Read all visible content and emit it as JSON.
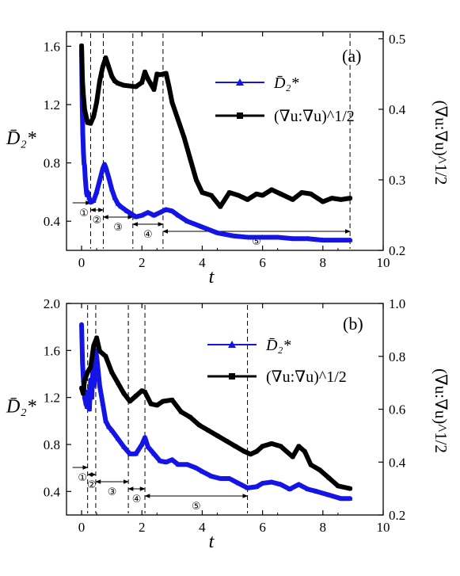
{
  "colors": {
    "blue": "#1414e6",
    "black": "#000000"
  },
  "chart_data": [
    {
      "type": "line",
      "panel_label": "(a)",
      "xlabel": "t",
      "ylabel": "D̄₂*",
      "ylabel_right": "(∇u:∇u)^1/2",
      "xlim": [
        -0.5,
        10
      ],
      "ylim": [
        0.2,
        1.7
      ],
      "ylim_right": [
        0.2,
        0.51
      ],
      "x_ticks": [
        "0",
        "2",
        "4",
        "6",
        "8",
        "10"
      ],
      "y_ticks": [
        "0.4",
        "0.8",
        "1.2",
        "1.6"
      ],
      "y_right_ticks": [
        "0.2",
        "0.3",
        "0.4",
        "0.5"
      ],
      "legend": [
        {
          "label": "D̄₂*",
          "color": "#1414e6",
          "marker": "triangle"
        },
        {
          "label": "(∇u:∇u)^1/2",
          "color": "#000000",
          "marker": "square"
        }
      ],
      "stage_lines": [
        0.3,
        0.72,
        1.7,
        2.7,
        8.9
      ],
      "stages": [
        {
          "label": "①",
          "from": -0.3,
          "to": 0.3
        },
        {
          "label": "②",
          "from": 0.3,
          "to": 0.72
        },
        {
          "label": "③",
          "from": 0.72,
          "to": 1.7
        },
        {
          "label": "④",
          "from": 1.7,
          "to": 2.7
        },
        {
          "label": "⑤",
          "from": 2.7,
          "to": 8.9
        }
      ],
      "series": [
        {
          "name": "D̄₂*",
          "axis": "left",
          "x": [
            0,
            0.02,
            0.04,
            0.06,
            0.08,
            0.1,
            0.12,
            0.14,
            0.16,
            0.18,
            0.2,
            0.25,
            0.3,
            0.4,
            0.5,
            0.6,
            0.7,
            0.76,
            0.8,
            0.9,
            1.0,
            1.1,
            1.2,
            1.3,
            1.5,
            1.8,
            2.0,
            2.2,
            2.4,
            2.6,
            2.8,
            3.0,
            3.2,
            3.5,
            4.0,
            4.5,
            5.0,
            5.5,
            6.0,
            6.5,
            7.0,
            7.5,
            8.0,
            8.5,
            8.9
          ],
          "y": [
            1.57,
            1.2,
            1.0,
            0.88,
            0.8,
            0.78,
            0.7,
            0.65,
            0.6,
            0.58,
            0.6,
            0.56,
            0.53,
            0.54,
            0.6,
            0.68,
            0.76,
            0.79,
            0.77,
            0.7,
            0.62,
            0.56,
            0.52,
            0.5,
            0.47,
            0.43,
            0.44,
            0.46,
            0.44,
            0.46,
            0.48,
            0.47,
            0.44,
            0.4,
            0.36,
            0.32,
            0.3,
            0.29,
            0.29,
            0.29,
            0.28,
            0.28,
            0.27,
            0.27,
            0.27
          ]
        },
        {
          "name": "(∇u:∇u)^1/2",
          "axis": "right",
          "x": [
            0,
            0.03,
            0.06,
            0.1,
            0.15,
            0.2,
            0.3,
            0.4,
            0.5,
            0.6,
            0.7,
            0.8,
            0.9,
            1.0,
            1.1,
            1.2,
            1.4,
            1.6,
            1.8,
            2.0,
            2.1,
            2.2,
            2.4,
            2.5,
            2.6,
            2.8,
            2.9,
            3.0,
            3.2,
            3.4,
            3.6,
            3.8,
            4.0,
            4.3,
            4.6,
            4.9,
            5.2,
            5.5,
            5.8,
            6.0,
            6.3,
            6.6,
            7.0,
            7.3,
            7.6,
            8.0,
            8.3,
            8.6,
            8.9
          ],
          "y": [
            0.49,
            0.44,
            0.42,
            0.4,
            0.39,
            0.381,
            0.38,
            0.39,
            0.41,
            0.44,
            0.46,
            0.473,
            0.46,
            0.447,
            0.44,
            0.437,
            0.434,
            0.433,
            0.432,
            0.438,
            0.453,
            0.443,
            0.428,
            0.45,
            0.449,
            0.451,
            0.432,
            0.41,
            0.385,
            0.36,
            0.33,
            0.3,
            0.282,
            0.278,
            0.262,
            0.282,
            0.278,
            0.272,
            0.28,
            0.278,
            0.286,
            0.28,
            0.272,
            0.282,
            0.28,
            0.269,
            0.274,
            0.272,
            0.274
          ]
        }
      ]
    },
    {
      "type": "line",
      "panel_label": "(b)",
      "xlabel": "t",
      "ylabel": "D̄₂*",
      "ylabel_right": "(∇u:∇u)^1/2",
      "xlim": [
        -0.5,
        10
      ],
      "ylim": [
        0.2,
        2.0
      ],
      "ylim_right": [
        0.2,
        1.0
      ],
      "x_ticks": [
        "0",
        "2",
        "4",
        "6",
        "8",
        "10"
      ],
      "y_ticks": [
        "0.4",
        "0.8",
        "1.2",
        "1.6",
        "2.0"
      ],
      "y_right_ticks": [
        "0.2",
        "0.4",
        "0.6",
        "0.8",
        "1.0"
      ],
      "legend": [
        {
          "label": "D̄₂*",
          "color": "#1414e6",
          "marker": "triangle"
        },
        {
          "label": "(∇u:∇u)^1/2",
          "color": "#000000",
          "marker": "square"
        }
      ],
      "stage_lines": [
        0.2,
        0.47,
        1.55,
        2.1,
        5.5
      ],
      "stages": [
        {
          "label": "①",
          "from": -0.3,
          "to": 0.2
        },
        {
          "label": "②",
          "from": 0.2,
          "to": 0.47
        },
        {
          "label": "③",
          "from": 0.47,
          "to": 1.55
        },
        {
          "label": "④",
          "from": 1.55,
          "to": 2.1
        },
        {
          "label": "⑤",
          "from": 2.1,
          "to": 5.5
        }
      ],
      "series": [
        {
          "name": "D̄₂*",
          "axis": "left",
          "x": [
            0,
            0.03,
            0.06,
            0.1,
            0.14,
            0.18,
            0.22,
            0.26,
            0.3,
            0.34,
            0.38,
            0.42,
            0.46,
            0.5,
            0.6,
            0.7,
            0.8,
            0.9,
            1.0,
            1.2,
            1.4,
            1.6,
            1.8,
            2.0,
            2.1,
            2.2,
            2.4,
            2.6,
            2.8,
            3.0,
            3.2,
            3.5,
            3.8,
            4.0,
            4.3,
            4.6,
            4.9,
            5.2,
            5.5,
            5.8,
            6.0,
            6.3,
            6.6,
            6.9,
            7.2,
            7.5,
            7.8,
            8.2,
            8.6,
            8.9
          ],
          "y": [
            1.82,
            1.5,
            1.35,
            1.2,
            1.15,
            1.12,
            1.25,
            1.1,
            1.35,
            1.2,
            1.5,
            1.3,
            1.6,
            1.55,
            1.3,
            1.15,
            1.0,
            0.95,
            0.92,
            0.85,
            0.78,
            0.72,
            0.72,
            0.8,
            0.86,
            0.78,
            0.72,
            0.66,
            0.65,
            0.67,
            0.63,
            0.63,
            0.6,
            0.57,
            0.53,
            0.51,
            0.51,
            0.47,
            0.43,
            0.44,
            0.47,
            0.48,
            0.46,
            0.42,
            0.46,
            0.42,
            0.4,
            0.37,
            0.34,
            0.34
          ]
        },
        {
          "name": "(∇u:∇u)^1/2",
          "axis": "right",
          "x": [
            0,
            0.05,
            0.1,
            0.2,
            0.3,
            0.4,
            0.5,
            0.6,
            0.8,
            1.0,
            1.2,
            1.4,
            1.6,
            1.8,
            2.0,
            2.1,
            2.3,
            2.5,
            2.7,
            3.0,
            3.3,
            3.6,
            3.9,
            4.2,
            4.5,
            4.8,
            5.1,
            5.4,
            5.6,
            5.8,
            6.0,
            6.3,
            6.6,
            7.0,
            7.2,
            7.4,
            7.6,
            7.9,
            8.2,
            8.5,
            8.9
          ],
          "y": [
            0.68,
            0.66,
            0.71,
            0.74,
            0.76,
            0.84,
            0.87,
            0.82,
            0.8,
            0.74,
            0.7,
            0.66,
            0.63,
            0.65,
            0.67,
            0.665,
            0.62,
            0.615,
            0.63,
            0.635,
            0.59,
            0.57,
            0.54,
            0.52,
            0.5,
            0.48,
            0.46,
            0.44,
            0.43,
            0.44,
            0.46,
            0.47,
            0.46,
            0.42,
            0.46,
            0.44,
            0.39,
            0.37,
            0.34,
            0.31,
            0.3
          ]
        }
      ]
    }
  ]
}
